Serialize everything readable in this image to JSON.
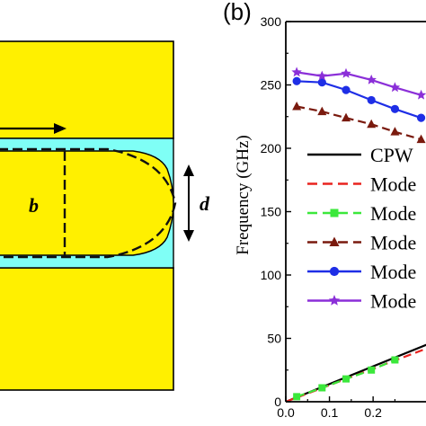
{
  "panel_b_label": "(b)",
  "diagram": {
    "label_b": "b",
    "label_d": "d",
    "colors": {
      "metal": "#FFF000",
      "gap": "#7FFFF6",
      "outline": "#000000"
    }
  },
  "chart_data": {
    "type": "line",
    "ylabel": "Frequency (GHz)",
    "xlabel": "",
    "xlim": [
      0.0,
      0.35
    ],
    "ylim": [
      0,
      300
    ],
    "x_ticks": [
      "0.0",
      "0.1",
      "0.2"
    ],
    "y_ticks": [
      "0",
      "50",
      "100",
      "150",
      "200",
      "250",
      "300"
    ],
    "legend": {
      "position": "left-center",
      "entries": [
        "CPW",
        "Mode",
        "Mode",
        "Mode",
        "Mode",
        "Mode"
      ]
    },
    "series": [
      {
        "name": "CPW",
        "color": "#000000",
        "dash": "solid",
        "marker": "none",
        "x": [
          0.0,
          0.33
        ],
        "y": [
          0,
          46
        ]
      },
      {
        "name": "Mode",
        "color": "#E8231F",
        "dash": "dashed",
        "marker": "none",
        "x": [
          0.0,
          0.33
        ],
        "y": [
          0,
          43
        ]
      },
      {
        "name": "Mode",
        "color": "#3BE83B",
        "dash": "dashed",
        "marker": "square",
        "x": [
          0.025,
          0.083,
          0.138,
          0.196,
          0.25
        ],
        "y": [
          4,
          11,
          18,
          25,
          33
        ]
      },
      {
        "name": "Mode",
        "color": "#7A1A0E",
        "dash": "dashed",
        "marker": "triangle",
        "x": [
          0.025,
          0.083,
          0.138,
          0.196,
          0.25,
          0.31
        ],
        "y": [
          233,
          229,
          224,
          219,
          213,
          207
        ]
      },
      {
        "name": "Mode",
        "color": "#1E2EE6",
        "dash": "solid",
        "marker": "circle",
        "x": [
          0.025,
          0.083,
          0.138,
          0.196,
          0.25,
          0.31
        ],
        "y": [
          253,
          252,
          246,
          238,
          231,
          224
        ]
      },
      {
        "name": "Mode",
        "color": "#8B2FD8",
        "dash": "solid",
        "marker": "star",
        "x": [
          0.025,
          0.083,
          0.138,
          0.196,
          0.25,
          0.31
        ],
        "y": [
          260,
          257,
          259,
          254,
          248,
          242
        ]
      }
    ]
  }
}
